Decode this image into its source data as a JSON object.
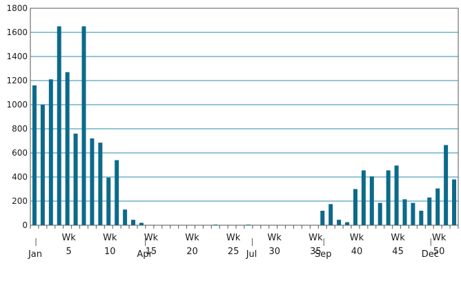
{
  "chart_data": {
    "type": "bar",
    "title": "",
    "xlabel": "",
    "ylabel": "",
    "ylim": [
      0,
      1800
    ],
    "yticks": [
      0,
      200,
      400,
      600,
      800,
      1000,
      1200,
      1400,
      1600,
      1800
    ],
    "grid": true,
    "colors": {
      "bar": "#0c6a8a",
      "grid": "#2a8aa8",
      "axis": "#555555",
      "text": "#1a1a1a"
    },
    "weeks": [
      1,
      2,
      3,
      4,
      5,
      6,
      7,
      8,
      9,
      10,
      11,
      12,
      13,
      14,
      15,
      16,
      17,
      18,
      19,
      20,
      21,
      22,
      23,
      24,
      25,
      26,
      27,
      28,
      29,
      30,
      31,
      32,
      33,
      34,
      35,
      36,
      37,
      38,
      39,
      40,
      41,
      42,
      43,
      44,
      45,
      46,
      47,
      48,
      49,
      50,
      51,
      52
    ],
    "values": [
      1160,
      1000,
      1210,
      1650,
      1270,
      760,
      1650,
      720,
      685,
      395,
      540,
      130,
      45,
      20,
      0,
      0,
      0,
      0,
      0,
      0,
      0,
      0,
      5,
      0,
      0,
      0,
      5,
      0,
      0,
      0,
      0,
      0,
      0,
      0,
      0,
      120,
      175,
      45,
      25,
      300,
      455,
      405,
      185,
      455,
      495,
      215,
      185,
      120,
      230,
      305,
      665,
      380
    ],
    "week_ticks": [
      {
        "week": 5,
        "label": "Wk",
        "number": "5"
      },
      {
        "week": 10,
        "label": "Wk",
        "number": "10"
      },
      {
        "week": 15,
        "label": "Wk",
        "number": "15"
      },
      {
        "week": 20,
        "label": "Wk",
        "number": "20"
      },
      {
        "week": 25,
        "label": "Wk",
        "number": "25"
      },
      {
        "week": 30,
        "label": "Wk",
        "number": "30"
      },
      {
        "week": 35,
        "label": "Wk",
        "number": "35"
      },
      {
        "week": 40,
        "label": "Wk",
        "number": "40"
      },
      {
        "week": 45,
        "label": "Wk",
        "number": "45"
      },
      {
        "week": 50,
        "label": "Wk",
        "number": "50"
      }
    ],
    "month_markers": [
      {
        "week": 1,
        "label": "Jan"
      },
      {
        "week": 14.3,
        "label": "Apr"
      },
      {
        "week": 27.3,
        "label": "Jul"
      },
      {
        "week": 36,
        "label": "Sep"
      },
      {
        "week": 49,
        "label": "Dec"
      }
    ]
  }
}
